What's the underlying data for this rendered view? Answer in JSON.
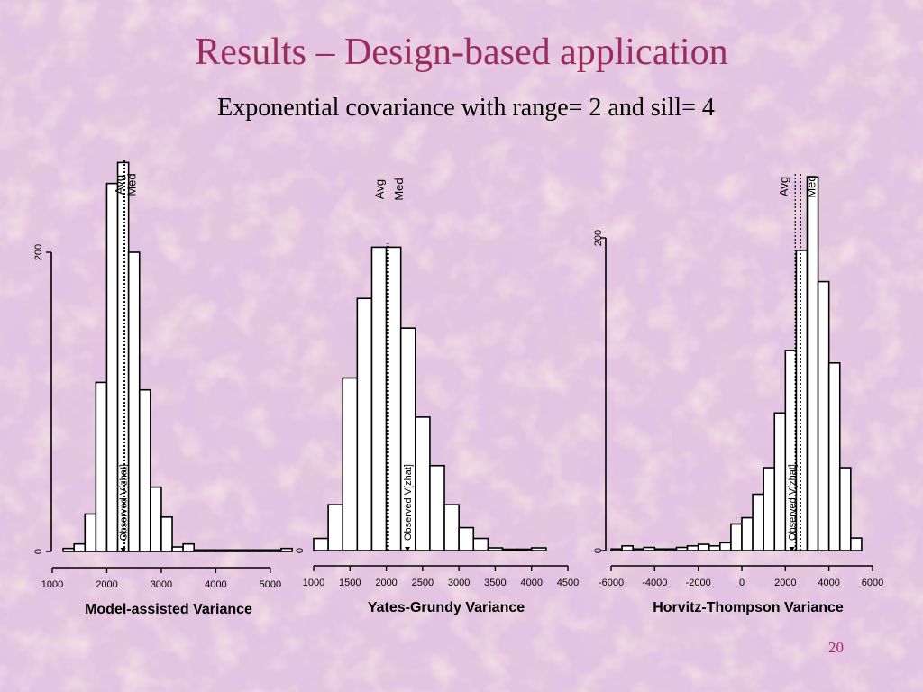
{
  "slide": {
    "title": "Results – Design-based application",
    "subtitle": "Exponential  covariance with range= 2 and sill= 4",
    "page_number": "20"
  },
  "colors": {
    "title": "#9b2d5e",
    "background": "#ddbbdd",
    "bars_fill": "#ffffff",
    "ink": "#000000"
  },
  "chart_data": [
    {
      "type": "bar",
      "subtype": "histogram",
      "xlabel": "Model-assisted Variance",
      "x_ticks": [
        1000,
        2000,
        3000,
        4000,
        5000
      ],
      "y_ticks": [
        0,
        200
      ],
      "xlim": [
        1000,
        5300
      ],
      "ylim": [
        0,
        200
      ],
      "bin_width": 200,
      "bin_start": 1200,
      "counts": [
        2,
        5,
        25,
        113,
        246,
        260,
        200,
        108,
        43,
        23,
        3,
        5,
        1,
        1,
        1,
        1,
        1,
        1,
        1,
        1,
        2
      ],
      "markers": {
        "avg": 2310,
        "med": 2330,
        "observed": 2300
      },
      "annotations": {
        "avg": "Avg",
        "med": "Med",
        "observed": "Observed V[zhat]"
      }
    },
    {
      "type": "bar",
      "subtype": "histogram",
      "xlabel": "Yates-Grundy Variance",
      "x_ticks": [
        1000,
        1500,
        2000,
        2500,
        3000,
        3500,
        4000,
        4500
      ],
      "y_ticks": [
        0
      ],
      "xlim": [
        1000,
        4500
      ],
      "ylim": [
        0,
        250
      ],
      "bin_width": 200,
      "bin_start": 1000,
      "counts": [
        9,
        34,
        128,
        187,
        225,
        225,
        165,
        99,
        63,
        34,
        17,
        9,
        2,
        1,
        1,
        2
      ],
      "markers": {
        "avg": 2010,
        "med": 2030,
        "observed": 2290
      },
      "annotations": {
        "avg": "Avg",
        "med": "Med",
        "observed": "Observed V[zhat]"
      }
    },
    {
      "type": "bar",
      "subtype": "histogram",
      "xlabel": "Horvitz-Thompson Variance",
      "x_ticks": [
        -6000,
        -4000,
        -2000,
        0,
        2000,
        4000,
        6000
      ],
      "y_ticks": [
        0,
        200
      ],
      "xlim": [
        -6000,
        6000
      ],
      "ylim": [
        0,
        200
      ],
      "bin_width": 500,
      "bin_start": -6000,
      "counts": [
        1,
        3,
        1,
        2,
        1,
        1,
        2,
        3,
        4,
        3,
        5,
        17,
        21,
        36,
        53,
        88,
        128,
        192,
        239,
        172,
        120,
        53,
        8
      ],
      "markers": {
        "avg": 2450,
        "med": 2700,
        "observed": 2300
      },
      "annotations": {
        "avg": "Avg",
        "med": "Med",
        "observed": "Observed V[zhat]"
      }
    }
  ]
}
